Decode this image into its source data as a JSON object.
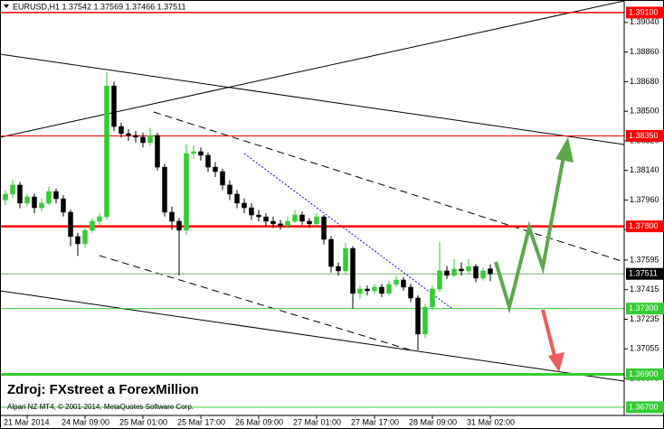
{
  "chart_data": {
    "type": "candlestick",
    "title": "EURUSD,H1  1.37542 1.37569 1.37466 1.37511",
    "source": "Zdroj: FXstreet a ForexMillion",
    "copyright": "Alpari NZ MT4, © 2001-2014, MetaQuotes Software Corp.",
    "up_color": "#33cc33",
    "down_color": "#000000",
    "categories": [
      null,
      null,
      null,
      "21 Mar 2014",
      null,
      null,
      null,
      null,
      null,
      null,
      null,
      "24 Mar 09:00",
      null,
      null,
      null,
      null,
      null,
      null,
      null,
      "25 Mar 01:00",
      null,
      null,
      null,
      null,
      null,
      null,
      null,
      "25 Mar 17:00",
      null,
      null,
      null,
      null,
      null,
      null,
      null,
      "26 Mar 09:00",
      null,
      null,
      null,
      null,
      null,
      null,
      null,
      "27 Mar 01:00",
      null,
      null,
      null,
      null,
      null,
      null,
      null,
      "27 Mar 17:00",
      null,
      null,
      null,
      null,
      null,
      null,
      null,
      "28 Mar 09:00",
      null,
      null,
      null,
      null,
      null,
      null,
      null,
      "31 Mar 02:00"
    ],
    "open": [
      1.3796,
      1.37996,
      1.38051,
      1.37941,
      1.37979,
      1.37913,
      1.37941,
      1.38012,
      1.37968,
      1.37886,
      1.37738,
      1.37694,
      1.37776,
      1.37831,
      1.37858,
      1.38654,
      1.38407,
      1.38364,
      1.38353,
      1.38342,
      1.38309,
      1.38353,
      1.3816,
      1.37886,
      1.37831,
      1.37776,
      1.38243,
      1.38254,
      1.38232,
      1.3816,
      1.38133,
      1.38051,
      1.37996,
      1.37941,
      1.37913,
      1.37869,
      1.37858,
      1.37831,
      1.37815,
      1.37804,
      1.37831,
      1.37869,
      1.37831,
      1.37815,
      1.37858,
      1.37721,
      1.37556,
      1.37529,
      1.37666,
      1.37392,
      1.37419,
      1.37408,
      1.3743,
      1.37392,
      1.37447,
      1.37474,
      1.3743,
      1.37364,
      1.37145,
      1.37309,
      1.37419,
      1.37529,
      1.37502,
      1.3754,
      1.37529,
      1.37556,
      1.37485,
      1.37542
    ],
    "high": [
      1.3802,
      1.3808,
      1.3807,
      1.38,
      1.38,
      1.3797,
      1.3804,
      1.3803,
      1.3799,
      1.379,
      1.3776,
      1.378,
      1.3785,
      1.3788,
      1.3874,
      1.3868,
      1.3843,
      1.3839,
      1.3838,
      1.3837,
      1.384,
      1.3837,
      1.3818,
      1.3792,
      1.3785,
      1.383,
      1.3829,
      1.3828,
      1.3825,
      1.3819,
      1.3815,
      1.3808,
      1.3802,
      1.3797,
      1.3794,
      1.379,
      1.3788,
      1.3786,
      1.3784,
      1.3786,
      1.379,
      1.3789,
      1.3785,
      1.3788,
      1.3787,
      1.3774,
      1.3758,
      1.377,
      1.3768,
      1.3744,
      1.3744,
      1.3745,
      1.3745,
      1.3747,
      1.375,
      1.3749,
      1.3745,
      1.3738,
      1.3733,
      1.3744,
      1.37705,
      1.3756,
      1.376,
      1.3758,
      1.376,
      1.3757,
      1.3755,
      1.37569
    ],
    "low": [
      1.3793,
      1.3797,
      1.3791,
      1.3792,
      1.3788,
      1.3789,
      1.3793,
      1.3794,
      1.3786,
      1.3768,
      1.3762,
      1.3767,
      1.3776,
      1.378,
      1.3784,
      1.3838,
      1.3834,
      1.3832,
      1.3831,
      1.3828,
      1.3829,
      1.3814,
      1.3786,
      1.3778,
      1.37502,
      1.3775,
      1.3821,
      1.382,
      1.3813,
      1.381,
      1.3802,
      1.3796,
      1.3791,
      1.3788,
      1.3784,
      1.3783,
      1.378,
      1.3779,
      1.3778,
      1.3779,
      1.3782,
      1.3781,
      1.3779,
      1.378,
      1.3769,
      1.3752,
      1.375,
      1.3751,
      1.373,
      1.3736,
      1.3738,
      1.3739,
      1.3737,
      1.3738,
      1.3743,
      1.3741,
      1.3734,
      1.37046,
      1.3712,
      1.3729,
      1.374,
      1.3748,
      1.3749,
      1.375,
      1.3751,
      1.3746,
      1.3747,
      1.37466
    ],
    "close": [
      1.37996,
      1.38051,
      1.37941,
      1.37979,
      1.37913,
      1.37941,
      1.38012,
      1.37968,
      1.37886,
      1.37738,
      1.37694,
      1.37776,
      1.37831,
      1.37858,
      1.38654,
      1.38407,
      1.38364,
      1.38353,
      1.38342,
      1.38309,
      1.38353,
      1.3816,
      1.37886,
      1.37831,
      1.37776,
      1.38243,
      1.38254,
      1.38232,
      1.3816,
      1.38133,
      1.38051,
      1.37996,
      1.37941,
      1.37913,
      1.37869,
      1.37858,
      1.37831,
      1.37815,
      1.37804,
      1.37831,
      1.37869,
      1.37831,
      1.37815,
      1.37858,
      1.37721,
      1.37556,
      1.37529,
      1.37666,
      1.37392,
      1.37419,
      1.37408,
      1.3743,
      1.37392,
      1.37447,
      1.37474,
      1.3743,
      1.37364,
      1.37145,
      1.37309,
      1.37419,
      1.37529,
      1.37502,
      1.3754,
      1.37529,
      1.37556,
      1.37485,
      1.37529,
      1.37511
    ],
    "ylim": [
      1.3665,
      1.3916
    ],
    "yticks": [
      {
        "value": 1.3904,
        "label": "1.39040"
      },
      {
        "value": 1.3886,
        "label": "1.38860"
      },
      {
        "value": 1.3868,
        "label": "1.38680"
      },
      {
        "value": 1.385,
        "label": "1.38500"
      },
      {
        "value": 1.3832,
        "label": "1.38320"
      },
      {
        "value": 1.3814,
        "label": "1.38140"
      },
      {
        "value": 1.3796,
        "label": "1.37960"
      },
      {
        "value": 1.3778,
        "label": "1.37780"
      },
      {
        "value": 1.37595,
        "label": "1.37595"
      },
      {
        "value": 1.37415,
        "label": "1.37415"
      },
      {
        "value": 1.37235,
        "label": "1.37235"
      },
      {
        "value": 1.37055,
        "label": "1.37055"
      },
      {
        "value": 1.36875,
        "label": "1.36875"
      }
    ],
    "levels": [
      {
        "value": 1.391,
        "label": "1.39100",
        "color": "#ff0000",
        "width": 1.5
      },
      {
        "value": 1.3835,
        "label": "1.38350",
        "color": "#ff0000",
        "width": 1
      },
      {
        "value": 1.378,
        "label": "1.37800",
        "color": "#ff0000",
        "width": 2.5
      },
      {
        "value": 1.37511,
        "label": "1.37511",
        "color": "#000000",
        "line_color": "#7aa87a",
        "width": 1
      },
      {
        "value": 1.373,
        "label": "1.37300",
        "color": "#33cc33",
        "width": 1
      },
      {
        "value": 1.369,
        "label": "1.36900",
        "color": "#33cc33",
        "width": 3
      },
      {
        "value": 1.367,
        "label": "1.36700",
        "color": "#33cc33",
        "width": 1
      }
    ]
  }
}
